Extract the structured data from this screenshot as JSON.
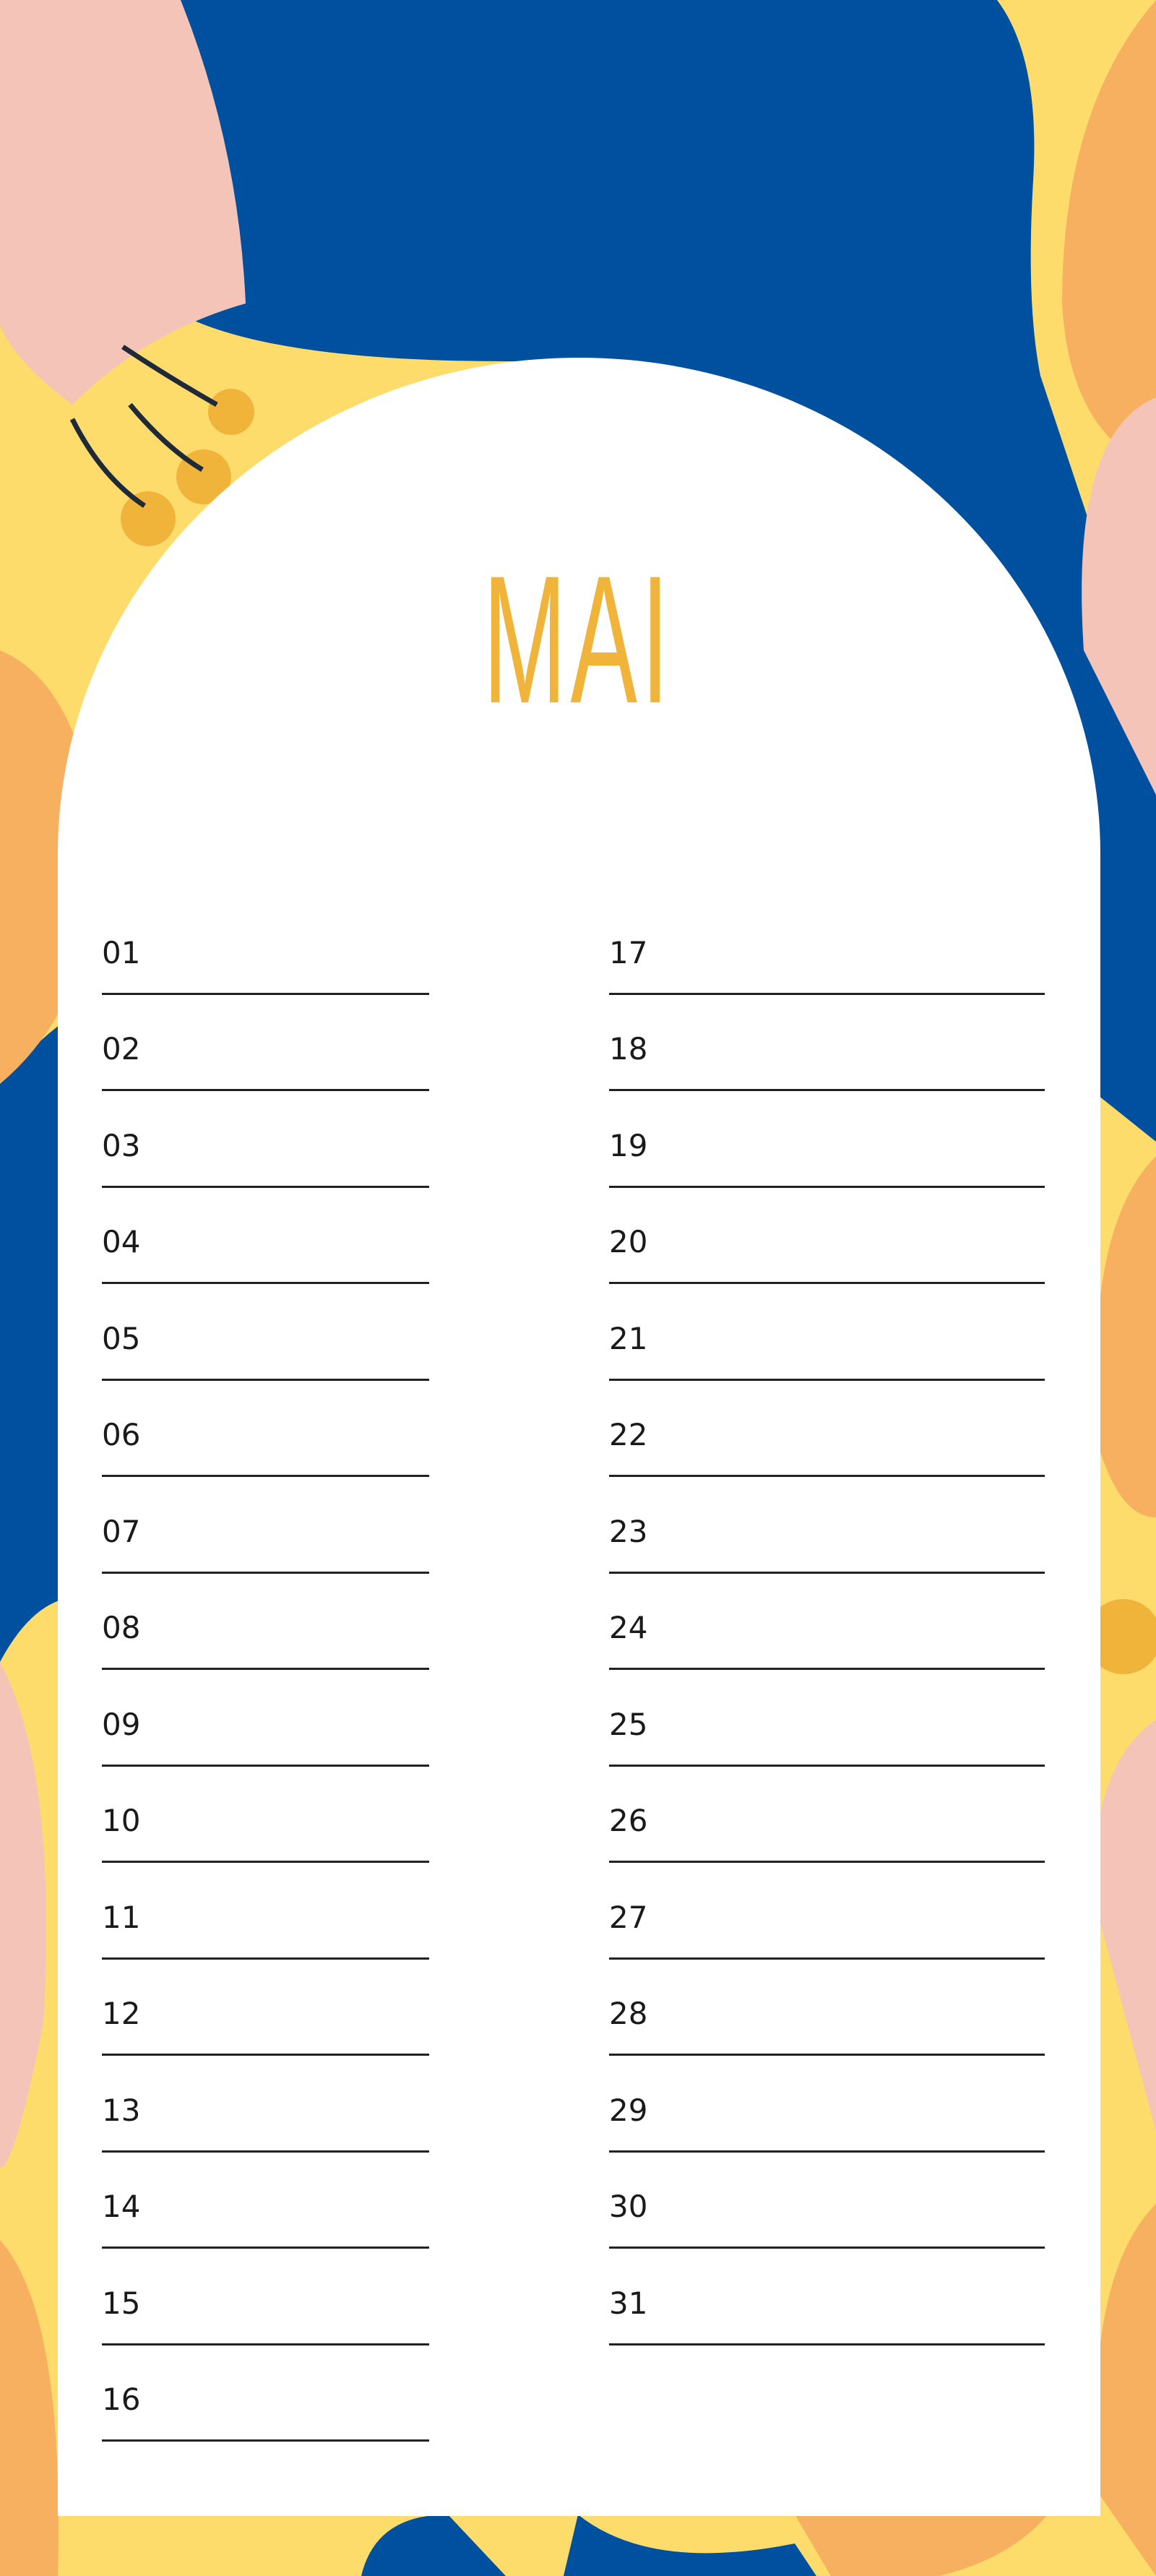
{
  "month_title": "MAI",
  "colors": {
    "background_yellow": "#fddc6c",
    "leaf_blue": "#0050a0",
    "leaf_pink": "#f5c4b8",
    "leaf_orange": "#f7b060",
    "title_gold": "#f0b43a"
  },
  "days_left": [
    "01",
    "02",
    "03",
    "04",
    "05",
    "06",
    "07",
    "08",
    "09",
    "10",
    "11",
    "12",
    "13",
    "14",
    "15",
    "16"
  ],
  "days_right": [
    "17",
    "18",
    "19",
    "20",
    "21",
    "22",
    "23",
    "24",
    "25",
    "26",
    "27",
    "28",
    "29",
    "30",
    "31"
  ]
}
